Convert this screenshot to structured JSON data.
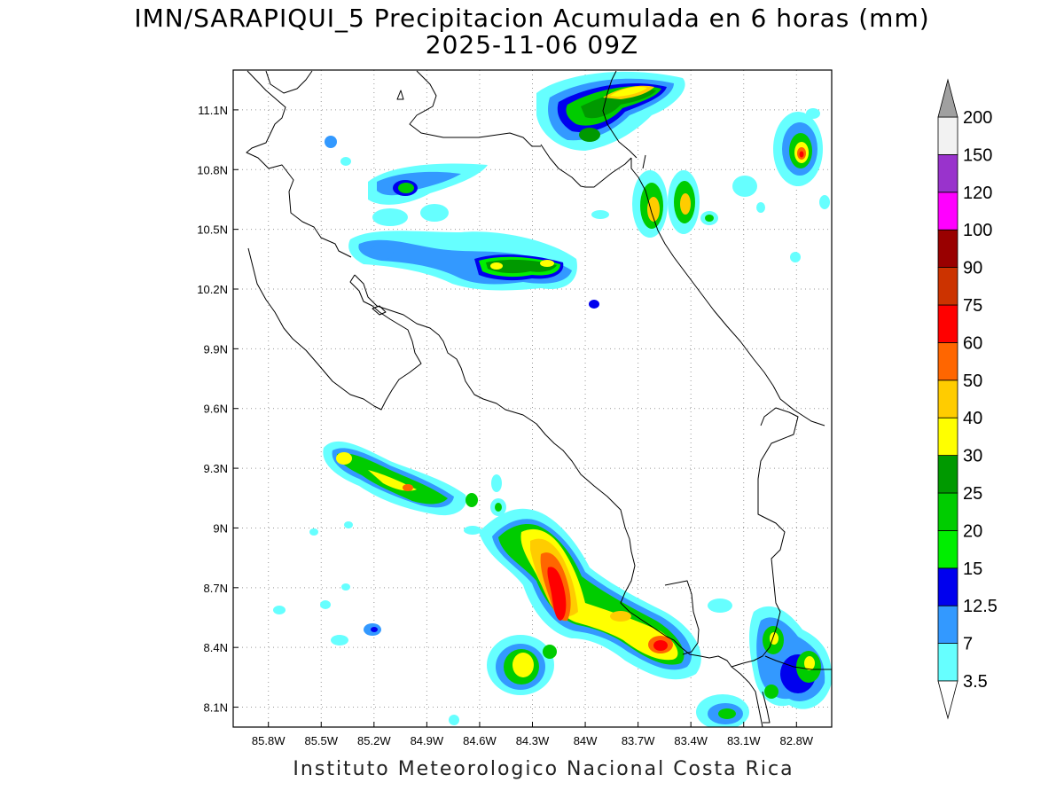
{
  "title": {
    "line1": "IMN/SARAPIQUI_5 Precipitacion Acumulada en 6 horas (mm)",
    "line2": "2025-11-06 09Z"
  },
  "credit": "Instituto Meteorologico Nacional Costa Rica",
  "map": {
    "lon_range": [
      -86.0,
      -82.6
    ],
    "lat_range": [
      8.0,
      11.3
    ],
    "lon_ticks": [
      "85.8W",
      "85.5W",
      "85.2W",
      "84.9W",
      "84.6W",
      "84.3W",
      "84W",
      "83.7W",
      "83.4W",
      "83.1W",
      "82.8W"
    ],
    "lon_tick_values": [
      -85.8,
      -85.5,
      -85.2,
      -84.9,
      -84.6,
      -84.3,
      -84.0,
      -83.7,
      -83.4,
      -83.1,
      -82.8
    ],
    "lat_ticks": [
      "8.1N",
      "8.4N",
      "8.7N",
      "9N",
      "9.3N",
      "9.6N",
      "9.9N",
      "10.2N",
      "10.5N",
      "10.8N",
      "11.1N"
    ],
    "lat_tick_values": [
      8.1,
      8.4,
      8.7,
      9.0,
      9.3,
      9.6,
      9.9,
      10.2,
      10.5,
      10.8,
      11.1
    ],
    "grid": true,
    "grid_style": "dotted"
  },
  "colorbar": {
    "labels": [
      "3.5",
      "7",
      "12.5",
      "15",
      "20",
      "25",
      "30",
      "40",
      "50",
      "60",
      "75",
      "90",
      "100",
      "120",
      "150",
      "200"
    ],
    "colors": [
      "#66ffff",
      "#3399ff",
      "#0000ee",
      "#00ee00",
      "#00cc00",
      "#009900",
      "#ffff00",
      "#ffcc00",
      "#ff6600",
      "#ff0000",
      "#cc3300",
      "#990000",
      "#ff00ff",
      "#9933cc",
      "#f2f2f2"
    ],
    "below_color": "#ffffff",
    "above_color": "#a0a0a0"
  }
}
